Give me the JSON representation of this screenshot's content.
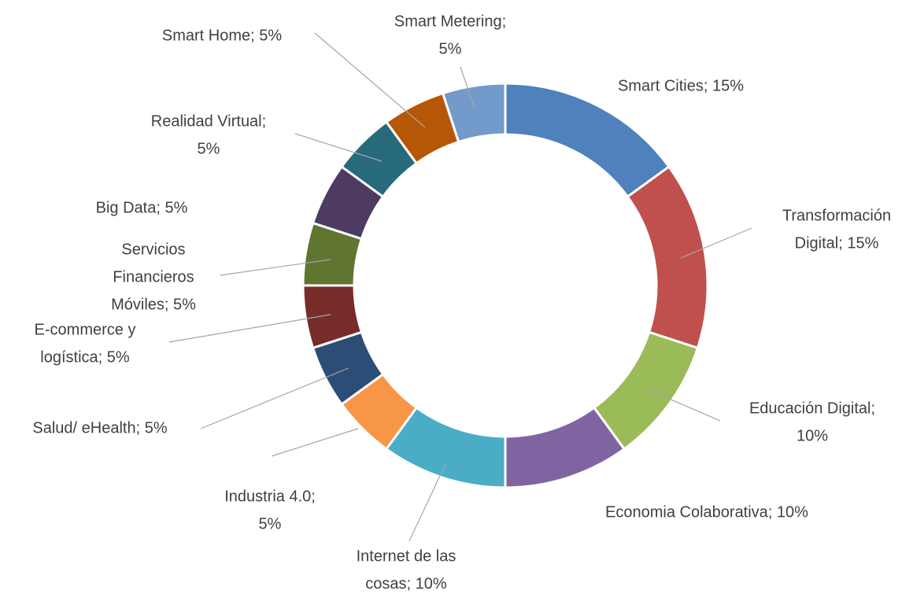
{
  "chart_data": {
    "type": "donut",
    "values": [
      15,
      15,
      10,
      10,
      10,
      5,
      5,
      5,
      5,
      5,
      5,
      5,
      5
    ],
    "value_labels": [
      [
        "Smart Cities; 15%"
      ],
      [
        "Transformación",
        "Digital; 15%"
      ],
      [
        "Educación Digital;",
        "10%"
      ],
      [
        "Economia Colaborativa; 10%"
      ],
      [
        "Internet de las",
        "cosas; 10%"
      ],
      [
        "Industria 4.0;",
        "5%"
      ],
      [
        "Salud/ eHealth; 5%"
      ],
      [
        "E-commerce y",
        "logística; 5%"
      ],
      [
        "Servicios",
        "Financieros",
        "Móviles; 5%"
      ],
      [
        "Big Data; 5%"
      ],
      [
        "Realidad Virtual;",
        "5%"
      ],
      [
        "Smart Home; 5%"
      ],
      [
        "Smart Metering;",
        "5%"
      ]
    ],
    "colors": [
      "#4f81bd",
      "#c0504d",
      "#9bbb59",
      "#8064a2",
      "#4bacc6",
      "#f79646",
      "#2c4d75",
      "#772c2a",
      "#5f7530",
      "#4d3b62",
      "#276a7c",
      "#b65708",
      "#729aca"
    ]
  }
}
